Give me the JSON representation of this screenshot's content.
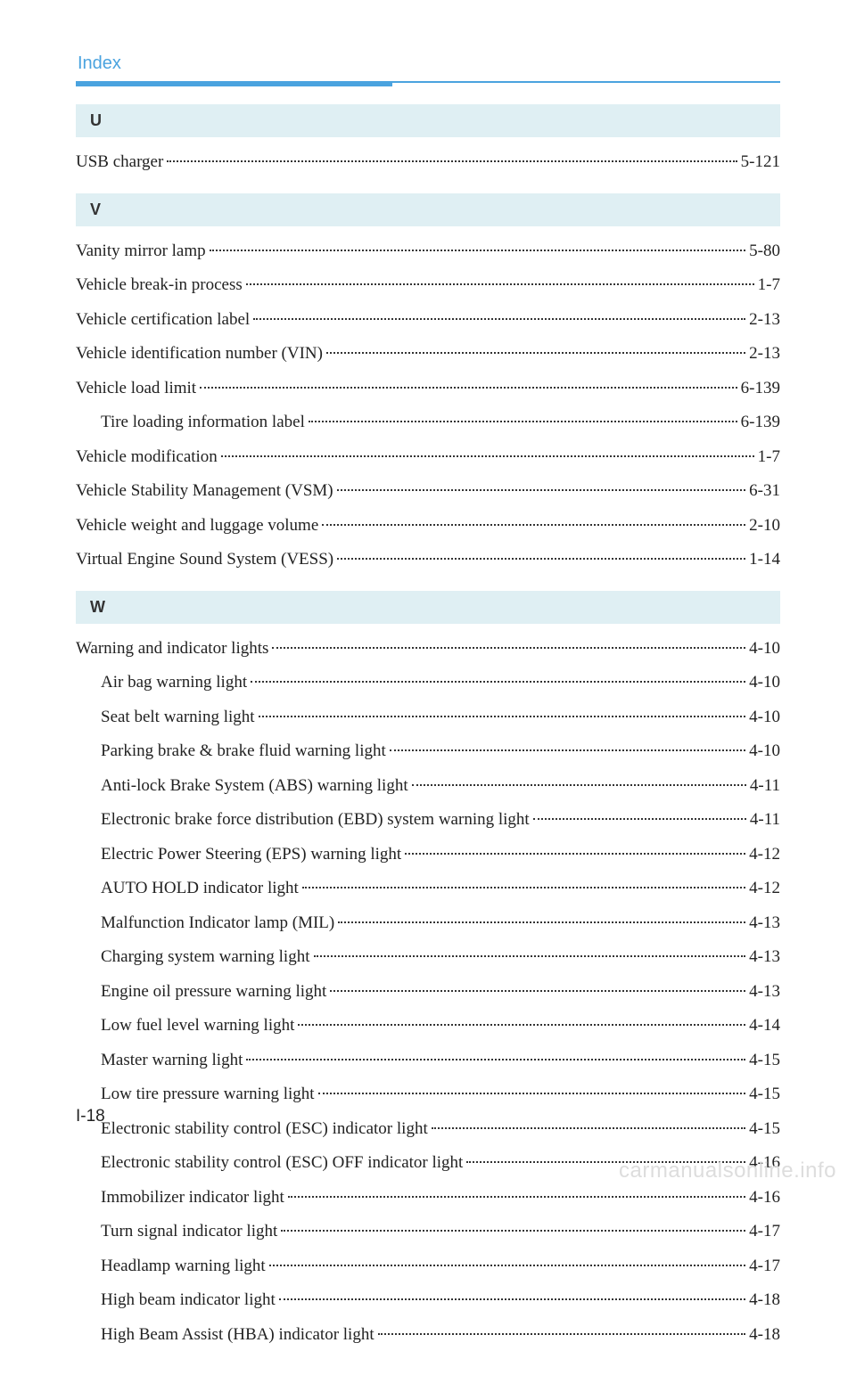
{
  "header": {
    "title": "Index"
  },
  "sections": [
    {
      "letter": "U",
      "entries": [
        {
          "label": "USB charger",
          "page": "5-121",
          "indented": false
        }
      ]
    },
    {
      "letter": "V",
      "entries": [
        {
          "label": "Vanity mirror lamp",
          "page": "5-80",
          "indented": false
        },
        {
          "label": "Vehicle break-in process",
          "page": "1-7",
          "indented": false
        },
        {
          "label": "Vehicle certification label",
          "page": "2-13",
          "indented": false
        },
        {
          "label": "Vehicle identification number (VIN)",
          "page": "2-13",
          "indented": false
        },
        {
          "label": "Vehicle load limit",
          "page": "6-139",
          "indented": false
        },
        {
          "label": "Tire loading information label",
          "page": "6-139",
          "indented": true
        },
        {
          "label": "Vehicle modification",
          "page": "1-7",
          "indented": false
        },
        {
          "label": "Vehicle Stability Management (VSM)",
          "page": "6-31",
          "indented": false
        },
        {
          "label": "Vehicle weight and luggage volume",
          "page": "2-10",
          "indented": false
        },
        {
          "label": "Virtual Engine Sound System (VESS)",
          "page": "1-14",
          "indented": false
        }
      ]
    },
    {
      "letter": "W",
      "entries": [
        {
          "label": "Warning and indicator lights",
          "page": "4-10",
          "indented": false
        },
        {
          "label": "Air bag warning light",
          "page": "4-10",
          "indented": true
        },
        {
          "label": "Seat belt warning light",
          "page": "4-10",
          "indented": true
        },
        {
          "label": "Parking brake & brake fluid warning light",
          "page": "4-10",
          "indented": true
        },
        {
          "label": "Anti-lock Brake System (ABS) warning light",
          "page": "4-11",
          "indented": true
        },
        {
          "label": "Electronic brake force distribution (EBD) system warning light",
          "page": "4-11",
          "indented": true
        },
        {
          "label": "Electric Power Steering (EPS) warning light",
          "page": "4-12",
          "indented": true
        },
        {
          "label": "AUTO HOLD indicator light",
          "page": "4-12",
          "indented": true
        },
        {
          "label": "Malfunction Indicator lamp (MIL)",
          "page": "4-13",
          "indented": true
        },
        {
          "label": "Charging system warning light",
          "page": "4-13",
          "indented": true
        },
        {
          "label": "Engine oil pressure warning light",
          "page": "4-13",
          "indented": true
        },
        {
          "label": "Low fuel level warning light",
          "page": "4-14",
          "indented": true
        },
        {
          "label": "Master warning light",
          "page": "4-15",
          "indented": true
        },
        {
          "label": "Low tire pressure warning light",
          "page": "4-15",
          "indented": true
        },
        {
          "label": "Electronic stability control (ESC) indicator light",
          "page": "4-15",
          "indented": true
        },
        {
          "label": "Electronic stability control (ESC) OFF indicator light",
          "page": "4-16",
          "indented": true
        },
        {
          "label": "Immobilizer indicator light",
          "page": "4-16",
          "indented": true
        },
        {
          "label": "Turn signal indicator light",
          "page": "4-17",
          "indented": true
        },
        {
          "label": "Headlamp warning light",
          "page": "4-17",
          "indented": true
        },
        {
          "label": "High beam indicator light",
          "page": "4-18",
          "indented": true
        },
        {
          "label": "High Beam Assist (HBA) indicator light",
          "page": "4-18",
          "indented": true
        }
      ]
    }
  ],
  "footer": {
    "page_number": "I-18",
    "watermark": "carmanualsonline.info"
  },
  "colors": {
    "accent": "#4aa3df",
    "section_bg": "#dfeff3",
    "text": "#222222",
    "watermark": "#dddddd"
  }
}
